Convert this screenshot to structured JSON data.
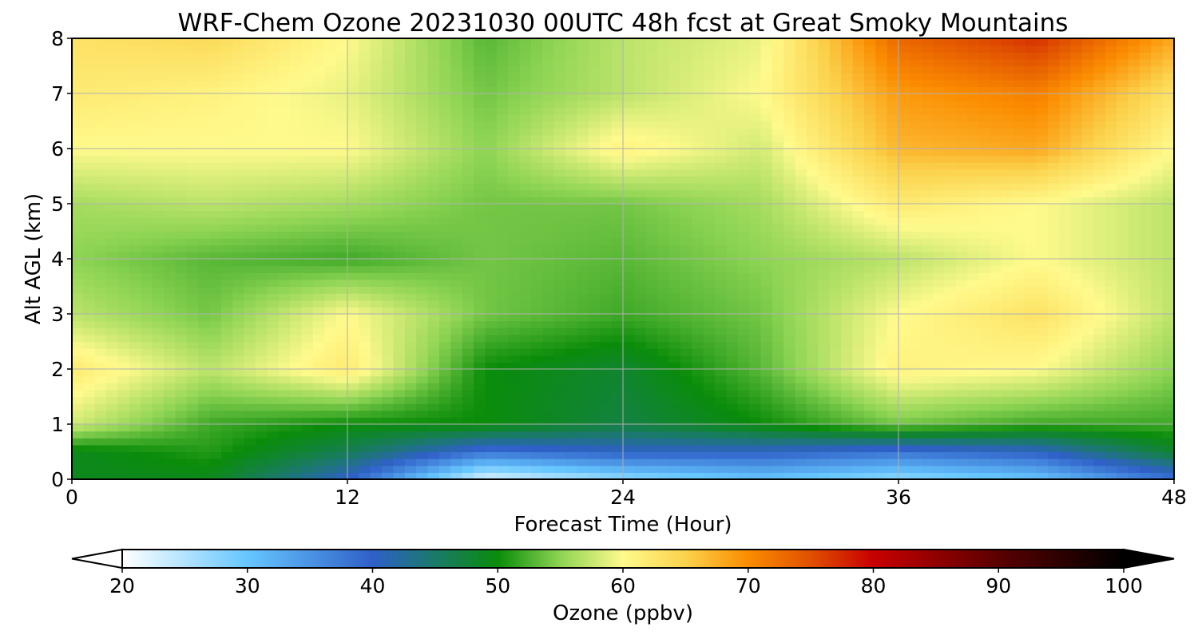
{
  "chart_data": {
    "type": "heatmap",
    "title": "WRF-Chem Ozone  20231030 00UTC 48h fcst at Great Smoky Mountains",
    "xlabel": "Forecast Time (Hour)",
    "ylabel": "Alt AGL (km)",
    "xlim": [
      0,
      48
    ],
    "ylim": [
      0,
      8
    ],
    "x_ticks": [
      "0",
      "12",
      "24",
      "36",
      "48"
    ],
    "y_ticks": [
      "0",
      "1",
      "2",
      "3",
      "4",
      "5",
      "6",
      "7",
      "8"
    ],
    "grid": true,
    "x": [
      0,
      6,
      12,
      18,
      24,
      30,
      36,
      42,
      48
    ],
    "y": [
      0,
      0.5,
      1,
      2,
      3,
      4,
      5,
      6,
      7,
      8
    ],
    "z_units": "ppbv",
    "values": [
      [
        49,
        49,
        40,
        22,
        27,
        30,
        27,
        30,
        38
      ],
      [
        49,
        51,
        46,
        38,
        40,
        40,
        38,
        40,
        48
      ],
      [
        58,
        52,
        50,
        50,
        47,
        50,
        54,
        52,
        52
      ],
      [
        62,
        57,
        62,
        50,
        48,
        53,
        61,
        60,
        55
      ],
      [
        57,
        54,
        60,
        54,
        52,
        54,
        60,
        63,
        57
      ],
      [
        55,
        53,
        52,
        54,
        53,
        55,
        57,
        60,
        57
      ],
      [
        56,
        57,
        56,
        54,
        54,
        56,
        62,
        60,
        57
      ],
      [
        60,
        60,
        60,
        55,
        61,
        58,
        67,
        68,
        60
      ],
      [
        62,
        61,
        59,
        54,
        57,
        60,
        69,
        71,
        63
      ],
      [
        63,
        64,
        60,
        53,
        57,
        59,
        73,
        77,
        68
      ]
    ],
    "colorbar": {
      "label": "Ozone  (ppbv)",
      "min": 20,
      "max": 100,
      "ticks": [
        "20",
        "30",
        "40",
        "50",
        "60",
        "70",
        "80",
        "90",
        "100"
      ],
      "extend": "both",
      "stops": [
        [
          20,
          "#ffffff"
        ],
        [
          30,
          "#66c6ff"
        ],
        [
          40,
          "#2f60c8"
        ],
        [
          45,
          "#1a7a68"
        ],
        [
          50,
          "#0a8c0a"
        ],
        [
          55,
          "#8ed454"
        ],
        [
          60,
          "#fffa8c"
        ],
        [
          65,
          "#fbd24c"
        ],
        [
          70,
          "#fb8c00"
        ],
        [
          75,
          "#e05000"
        ],
        [
          80,
          "#c80000"
        ],
        [
          90,
          "#5a0000"
        ],
        [
          100,
          "#000000"
        ]
      ]
    }
  }
}
